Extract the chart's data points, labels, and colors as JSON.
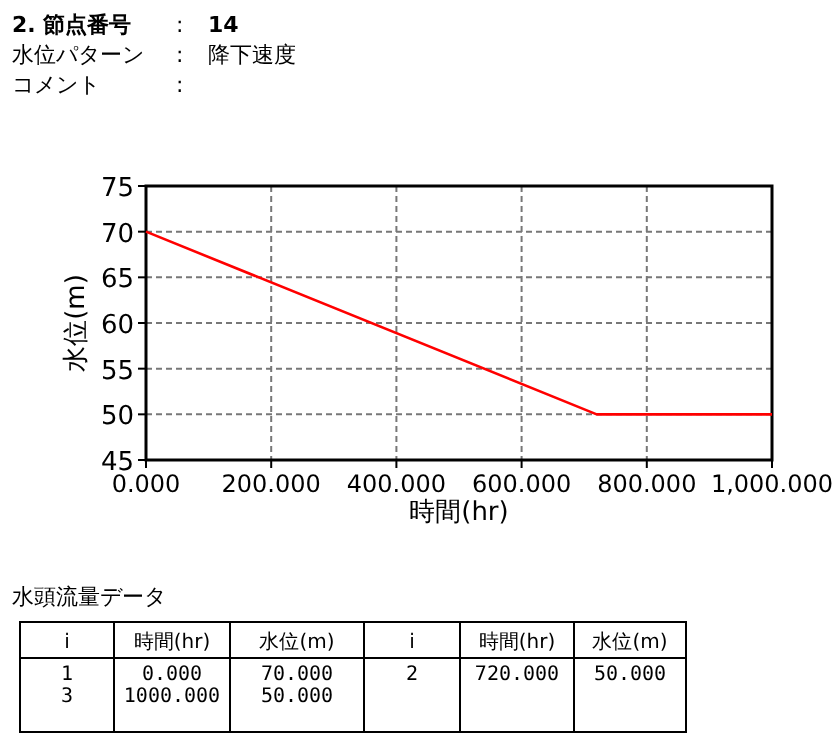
{
  "chart_data": {
    "type": "line",
    "xlabel": "時間(hr)",
    "ylabel": "水位(m)",
    "x": [
      0,
      720,
      1000
    ],
    "values": [
      70,
      50,
      50
    ],
    "color": "#ff0000",
    "xlim": [
      0,
      1000
    ],
    "ylim": [
      45,
      75
    ],
    "xticks": [
      {
        "value": 0,
        "label": "0.000"
      },
      {
        "value": 200,
        "label": "200.000"
      },
      {
        "value": 400,
        "label": "400.000"
      },
      {
        "value": 600,
        "label": "600.000"
      },
      {
        "value": 800,
        "label": "800.000"
      },
      {
        "value": 1000,
        "label": "1,000.000"
      }
    ],
    "yticks": [
      45,
      50,
      55,
      60,
      65,
      70,
      75
    ],
    "grid": true,
    "line_style": "solid",
    "marker": "none",
    "annotations": [
      "2. 節点番号",
      ":",
      "14",
      "水位パターン",
      ":",
      "降下速度",
      "コメント",
      ":",
      "水頭流量データ",
      "i",
      "時間(hr)",
      "水位(m)",
      "i",
      "時間(hr)",
      "水位(m)",
      "1",
      "0.000",
      "70.000",
      "2",
      "720.000",
      "50.000",
      "3",
      "1000.000",
      "50.000"
    ]
  }
}
